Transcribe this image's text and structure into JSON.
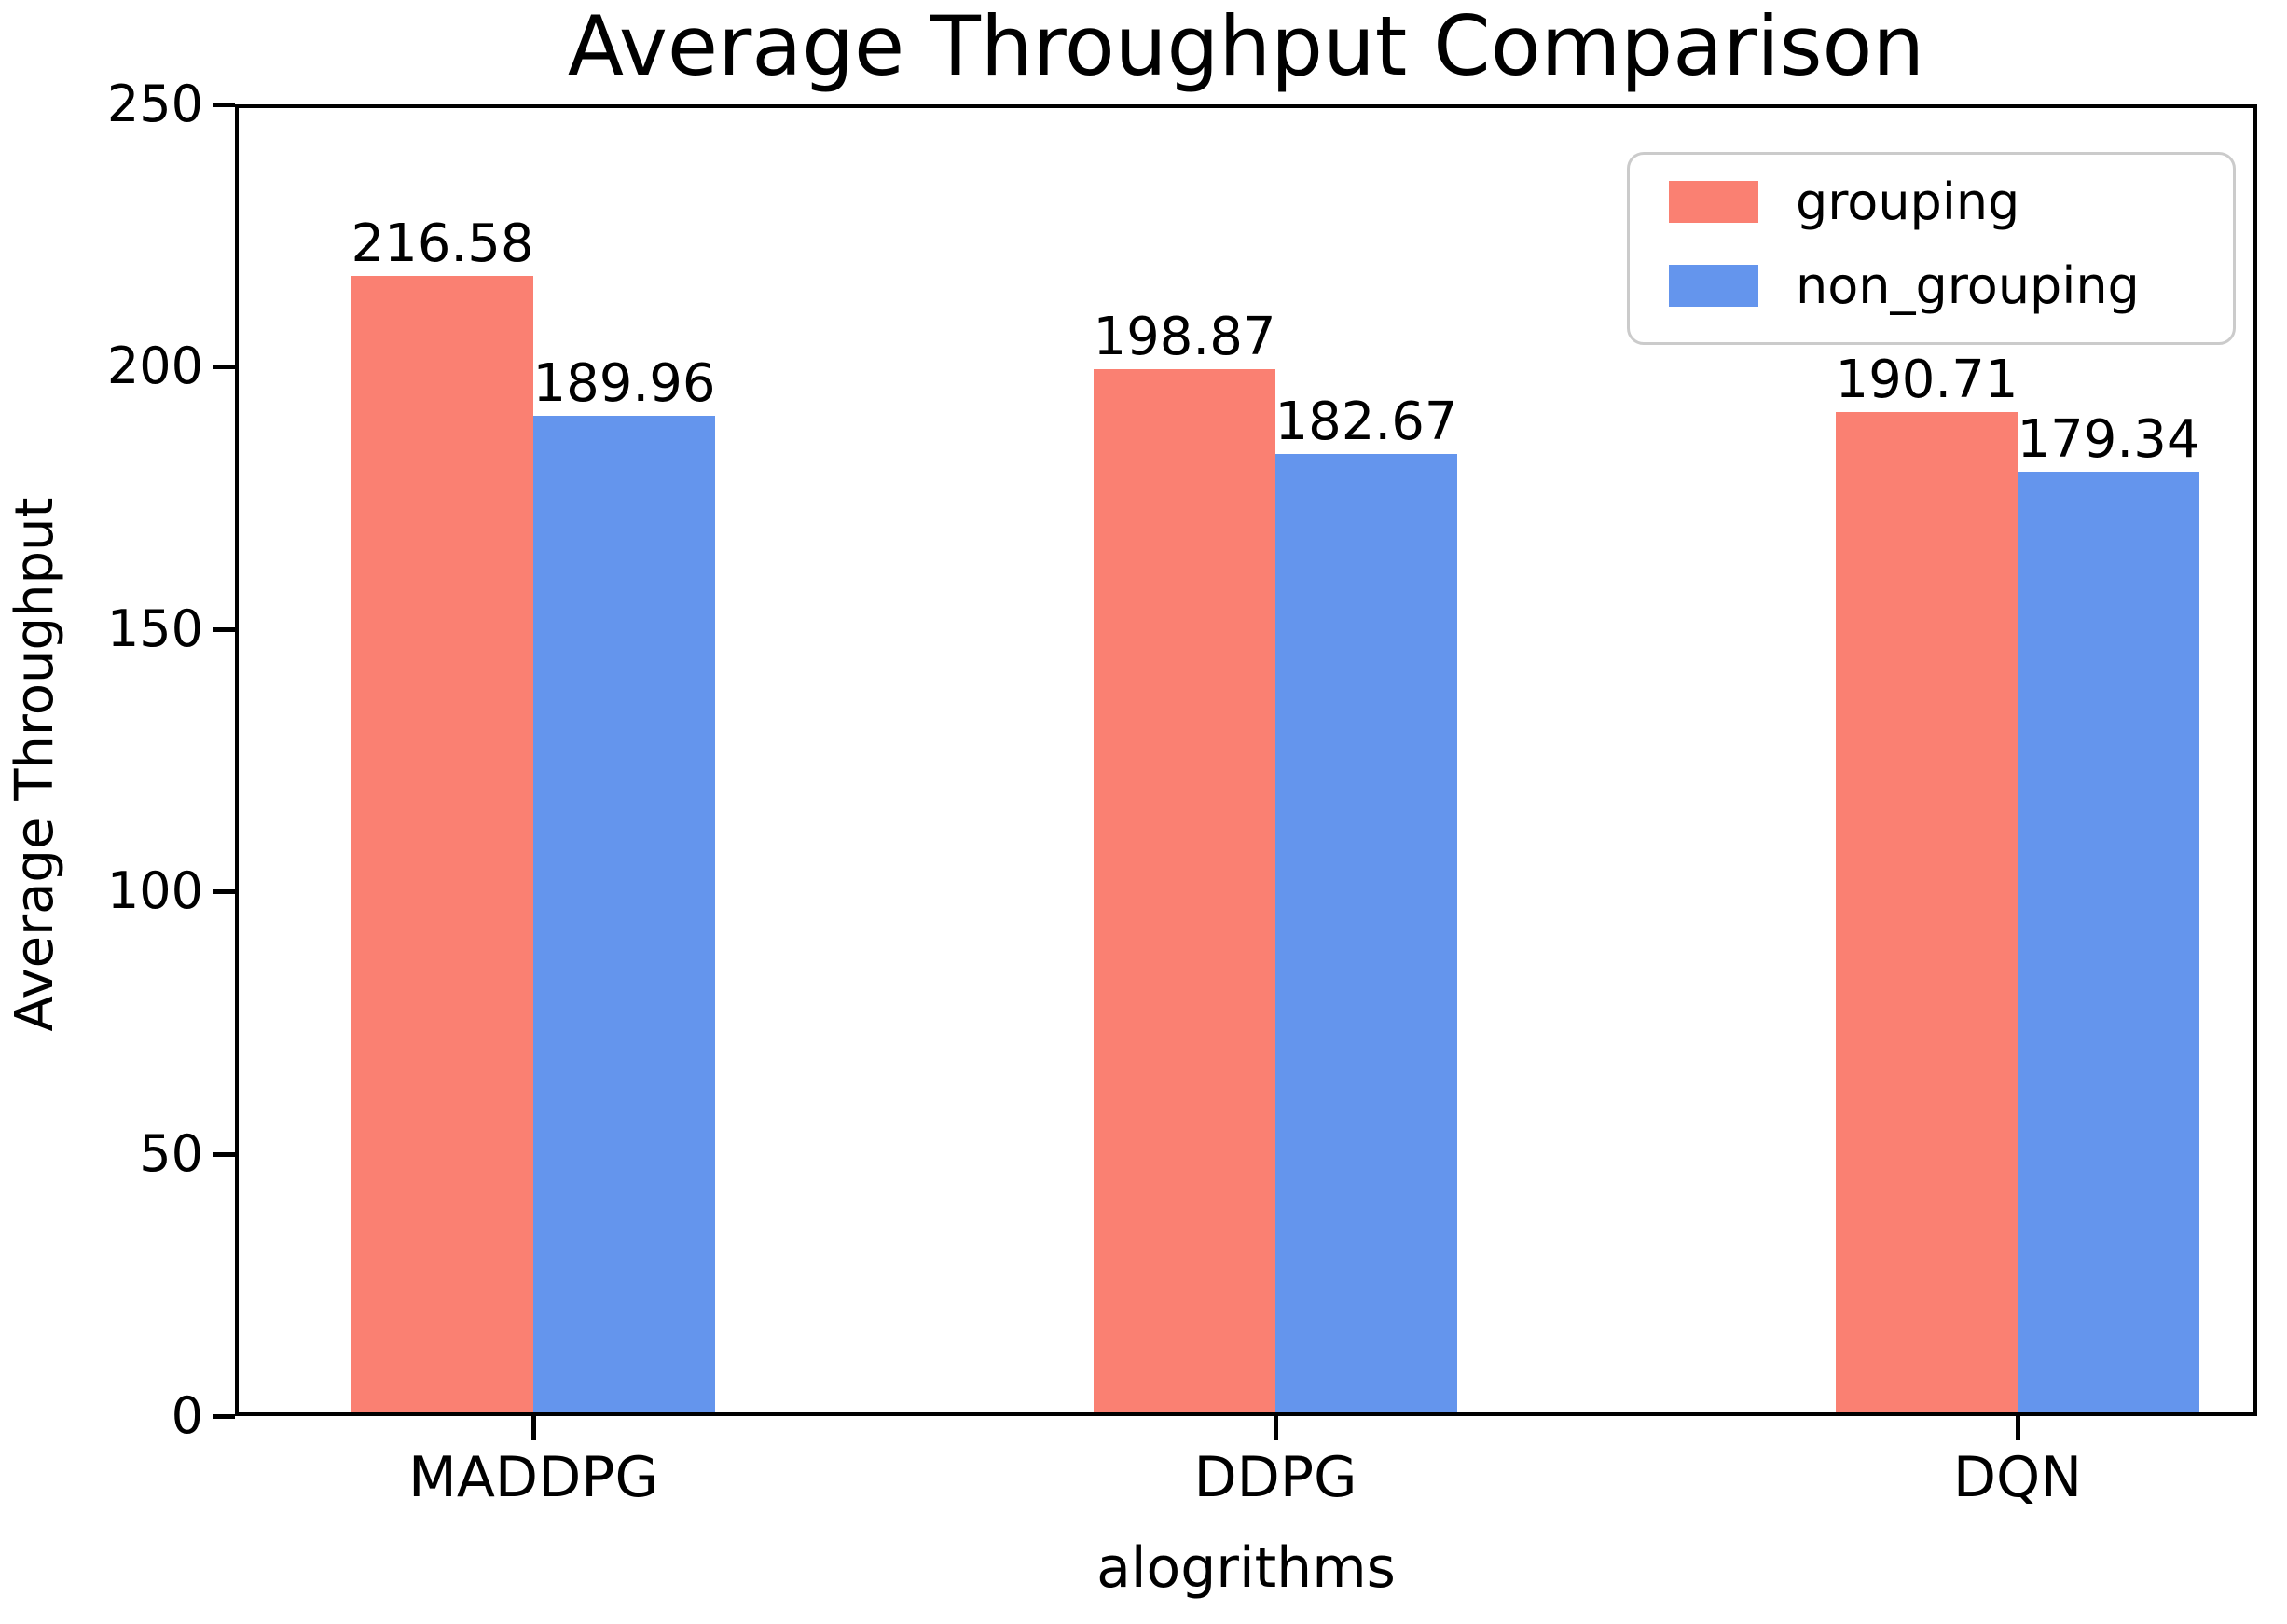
{
  "chart_data": {
    "type": "bar",
    "title": "Average Throughput Comparison",
    "xlabel": "alogrithms",
    "ylabel": "Average Throughput",
    "categories": [
      "MADDPG",
      "DDPG",
      "DQN"
    ],
    "series": [
      {
        "name": "grouping",
        "color": "#FA8072",
        "values": [
          216.58,
          198.87,
          190.71
        ]
      },
      {
        "name": "non_grouping",
        "color": "#6495ED",
        "values": [
          189.96,
          182.67,
          179.34
        ]
      }
    ],
    "ylim": [
      0,
      250
    ],
    "yticks": [
      0,
      50,
      100,
      150,
      200,
      250
    ],
    "grid": false,
    "legend_position": "upper right",
    "bar_value_labels": true,
    "colors": {
      "axis": "#000000",
      "legend_border": "#cbcbcb",
      "background": "#ffffff"
    }
  }
}
